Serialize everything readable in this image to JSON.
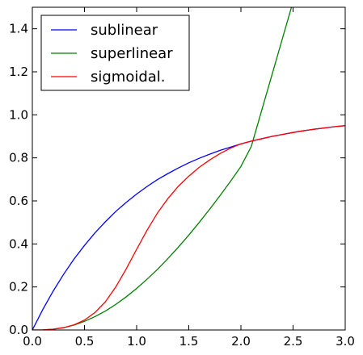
{
  "chart_data": {
    "type": "line",
    "title": "",
    "xlabel": "",
    "ylabel": "",
    "xlim": [
      0.0,
      3.0
    ],
    "ylim": [
      0.0,
      1.5
    ],
    "xticks": [
      "0.0",
      "0.5",
      "1.0",
      "1.5",
      "2.0",
      "2.5",
      "3.0"
    ],
    "yticks": [
      "0.0",
      "0.2",
      "0.4",
      "0.6",
      "0.8",
      "1.0",
      "1.2",
      "1.4"
    ],
    "grid": false,
    "legend_position": "top-left",
    "series": [
      {
        "name": "sublinear",
        "color": "#0000ff",
        "x": [
          0,
          0.1,
          0.2,
          0.3,
          0.4,
          0.5,
          0.6,
          0.7,
          0.8,
          0.9,
          1.0,
          1.1,
          1.2,
          1.3,
          1.4,
          1.5,
          1.6,
          1.7,
          1.8,
          1.9,
          2.0,
          2.1,
          2.2,
          2.3,
          2.4,
          2.5,
          2.6,
          2.7,
          2.8,
          2.9,
          3.0
        ],
        "values": [
          0,
          0.095,
          0.181,
          0.259,
          0.33,
          0.393,
          0.451,
          0.503,
          0.551,
          0.593,
          0.632,
          0.667,
          0.699,
          0.727,
          0.753,
          0.777,
          0.798,
          0.817,
          0.835,
          0.85,
          0.865,
          0.878,
          0.889,
          0.9,
          0.909,
          0.918,
          0.926,
          0.933,
          0.939,
          0.945,
          0.95
        ]
      },
      {
        "name": "superlinear",
        "color": "#008000",
        "x": [
          0,
          0.1,
          0.2,
          0.3,
          0.4,
          0.5,
          0.6,
          0.7,
          0.8,
          0.9,
          1.0,
          1.1,
          1.2,
          1.3,
          1.4,
          1.5,
          1.6,
          1.7,
          1.8,
          1.9,
          2.0,
          2.1,
          2.2,
          2.3,
          2.4,
          2.5
        ],
        "values": [
          0,
          0.0005,
          0.0036,
          0.011,
          0.023,
          0.04,
          0.062,
          0.088,
          0.119,
          0.154,
          0.193,
          0.236,
          0.282,
          0.332,
          0.385,
          0.441,
          0.5,
          0.561,
          0.625,
          0.691,
          0.76,
          0.854,
          1.022,
          1.19,
          1.358,
          1.526
        ]
      },
      {
        "name": "sigmoidal.",
        "color": "#ff0000",
        "x": [
          0,
          0.1,
          0.2,
          0.3,
          0.4,
          0.5,
          0.6,
          0.7,
          0.8,
          0.9,
          1.0,
          1.1,
          1.2,
          1.3,
          1.4,
          1.5,
          1.6,
          1.7,
          1.8,
          1.9,
          2.0,
          2.1,
          2.2,
          2.3,
          2.4,
          2.5,
          2.6,
          2.7,
          2.8,
          2.9,
          3.0
        ],
        "values": [
          0,
          0.0006,
          0.0036,
          0.011,
          0.024,
          0.046,
          0.081,
          0.131,
          0.2,
          0.284,
          0.375,
          0.464,
          0.544,
          0.611,
          0.668,
          0.715,
          0.756,
          0.79,
          0.82,
          0.845,
          0.865,
          0.878,
          0.889,
          0.9,
          0.909,
          0.918,
          0.926,
          0.933,
          0.939,
          0.945,
          0.95
        ]
      }
    ]
  }
}
